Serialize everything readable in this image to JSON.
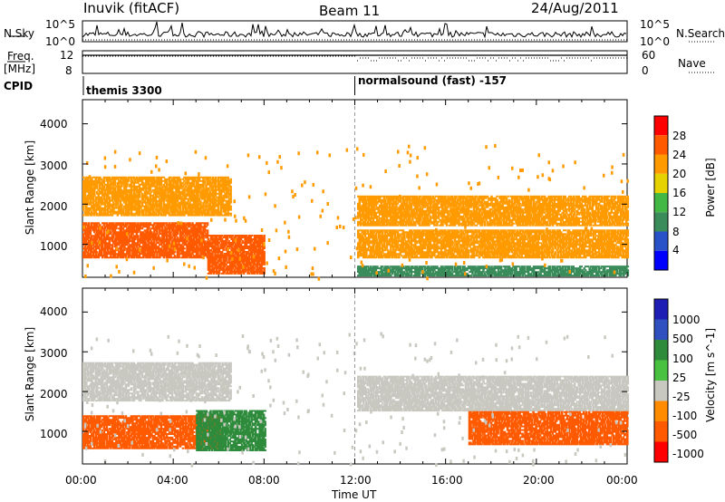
{
  "header": {
    "station": "Inuvik (fitACF)",
    "beam": "Beam 11",
    "date": "24/Aug/2011"
  },
  "left_labels": {
    "nsky": "N.Sky",
    "freq_line1": "Freq.",
    "freq_line2": "[MHz]",
    "cpid": "CPID"
  },
  "right_labels": {
    "nsearch": "N.Search",
    "nave": "Nave"
  },
  "colors": {
    "power": [
      "#0000ff",
      "#2a52c8",
      "#3a8c5a",
      "#44b844",
      "#e6d200",
      "#ff9a00",
      "#ff5a00",
      "#ff0000"
    ],
    "velocity": [
      "#1e1eb4",
      "#3050c0",
      "#2e8b3c",
      "#48c040",
      "#c8c8c0",
      "#ff8c00",
      "#ff5a00",
      "#ff0000"
    ]
  },
  "chart_data": [
    {
      "type": "line",
      "name": "noise-panel",
      "left_ticks": [
        "10^5",
        "10^0"
      ],
      "right_ticks": [
        "10^5",
        "10^0"
      ],
      "xlim": [
        "00:00",
        "24:00"
      ]
    },
    {
      "type": "line",
      "name": "frequency-panel",
      "left_ticks": [
        "12",
        "8"
      ],
      "right_ticks": [
        "60",
        "0"
      ],
      "freq_mhz": 11.2,
      "xlim": [
        "00:00",
        "24:00"
      ]
    },
    {
      "type": "table",
      "name": "cpid-panel",
      "segments": [
        {
          "start": "00:00",
          "end": "12:00",
          "label": "themis 3300"
        },
        {
          "start": "12:00",
          "end": "24:00",
          "label": "normalsound (fast) -157"
        }
      ]
    },
    {
      "type": "heatmap",
      "name": "power-panel",
      "ylabel": "Slant Range [km]",
      "yticks": [
        1000,
        2000,
        3000,
        4000
      ],
      "ylim": [
        180,
        4600
      ],
      "xlim": [
        0,
        24
      ],
      "colorbar": {
        "label": "Power [dB]",
        "ticks": [
          "4",
          "8",
          "12",
          "16",
          "20",
          "24",
          "28"
        ],
        "range": [
          0,
          32
        ]
      },
      "bands": [
        {
          "t0": 0,
          "t1": 6.5,
          "r0": 1700,
          "r1": 2650,
          "v": 22
        },
        {
          "t0": 0,
          "t1": 5.5,
          "r0": 650,
          "r1": 1550,
          "v": 27
        },
        {
          "t0": 5.5,
          "t1": 8,
          "r0": 250,
          "r1": 1200,
          "v": 27
        },
        {
          "t0": 12.1,
          "t1": 24,
          "r0": 1450,
          "r1": 2200,
          "v": 22
        },
        {
          "t0": 12.1,
          "t1": 24,
          "r0": 650,
          "r1": 1350,
          "v": 20
        },
        {
          "t0": 12.1,
          "t1": 24,
          "r0": 200,
          "r1": 450,
          "v": 9
        }
      ]
    },
    {
      "type": "heatmap",
      "name": "velocity-panel",
      "ylabel": "Slant Range [km]",
      "yticks": [
        1000,
        2000,
        3000,
        4000
      ],
      "ylim": [
        180,
        4600
      ],
      "xlim": [
        0,
        24
      ],
      "colorbar": {
        "label": "Velocity [m s^-1]",
        "ticks": [
          "1000",
          "500",
          "100",
          "25",
          "-25",
          "-100",
          "-500",
          "-1000"
        ]
      },
      "bands": [
        {
          "t0": 0,
          "t1": 6.5,
          "r0": 1750,
          "r1": 2700,
          "v": 0
        },
        {
          "t0": 0,
          "t1": 6,
          "r0": 550,
          "r1": 1400,
          "v": -300
        },
        {
          "t0": 5,
          "t1": 8,
          "r0": 500,
          "r1": 1500,
          "v": 200
        },
        {
          "t0": 12.1,
          "t1": 24,
          "r0": 1500,
          "r1": 2400,
          "v": 0
        },
        {
          "t0": 17,
          "t1": 24,
          "r0": 650,
          "r1": 1500,
          "v": -300
        }
      ]
    }
  ],
  "x_axis": {
    "ticks": [
      "00:00",
      "04:00",
      "08:00",
      "12:00",
      "16:00",
      "20:00",
      "00:00"
    ],
    "label": "Time UT"
  }
}
